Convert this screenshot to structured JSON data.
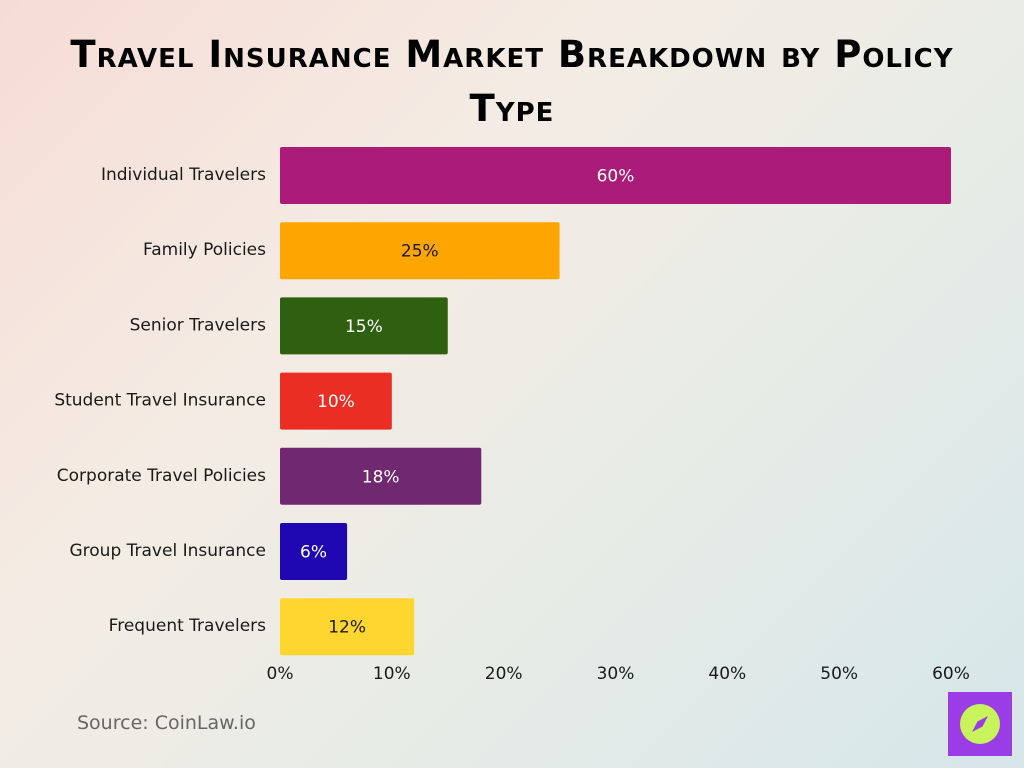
{
  "chart_data": {
    "type": "bar",
    "orientation": "horizontal",
    "title": "Travel Insurance Market Breakdown by Policy Type",
    "categories": [
      "Individual Travelers",
      "Family Policies",
      "Senior Travelers",
      "Student Travel Insurance",
      "Corporate Travel Policies",
      "Group Travel Insurance",
      "Frequent Travelers"
    ],
    "values": [
      60,
      25,
      15,
      10,
      18,
      6,
      12
    ],
    "data_labels": [
      "60%",
      "25%",
      "15%",
      "10%",
      "18%",
      "6%",
      "12%"
    ],
    "colors": [
      "#aa1c78",
      "#ffa500",
      "#2f5f10",
      "#ea2e23",
      "#702870",
      "#1e06b0",
      "#ffd530"
    ],
    "label_colors": [
      "#ffffff",
      "#1a1a1a",
      "#ffffff",
      "#ffffff",
      "#ffffff",
      "#ffffff",
      "#1a1a1a"
    ],
    "x_ticks": [
      0,
      10,
      20,
      30,
      40,
      50,
      60
    ],
    "x_tick_labels": [
      "0%",
      "10%",
      "20%",
      "30%",
      "40%",
      "50%",
      "60%"
    ],
    "xlim": [
      0,
      60
    ],
    "xlabel": "",
    "ylabel": "",
    "grid": false,
    "legend": "none"
  },
  "source": "Source: CoinLaw.io",
  "logo": {
    "icon": "compass-icon",
    "background": "#9b3de6",
    "circle_color": "#c6f45a"
  }
}
